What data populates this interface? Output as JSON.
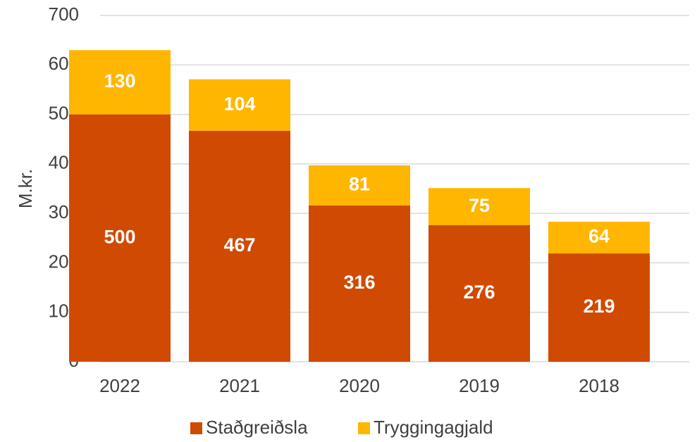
{
  "chart_data": {
    "type": "stacked_bar",
    "y_label": "M.kr.",
    "categories": [
      "2022",
      "2021",
      "2020",
      "2019",
      "2018"
    ],
    "series": [
      {
        "name": "Staðgreiðsla",
        "color": "#d04a02",
        "values": [
          500,
          467,
          316,
          276,
          219
        ]
      },
      {
        "name": "Tryggingagjald",
        "color": "#ffb600",
        "values": [
          130,
          104,
          81,
          75,
          64
        ]
      }
    ],
    "ylim": [
      0,
      700
    ],
    "yticks": [
      0,
      100,
      200,
      300,
      400,
      500,
      600,
      700
    ],
    "grid": true,
    "legend": "bottom"
  }
}
